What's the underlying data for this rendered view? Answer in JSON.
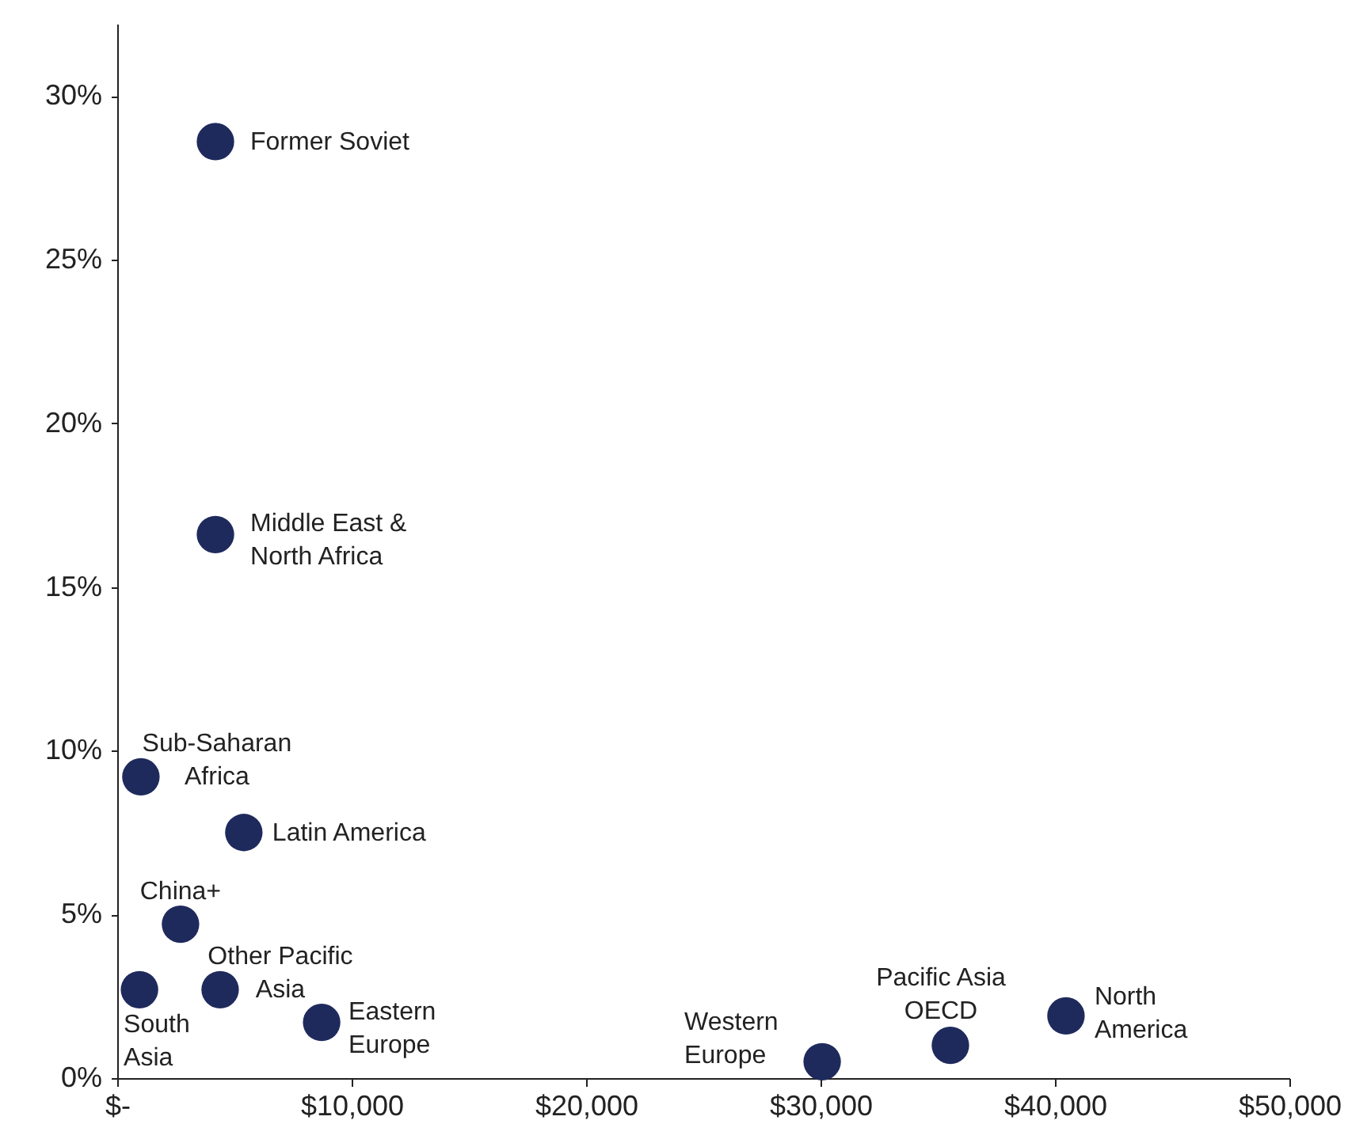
{
  "chart_data": {
    "type": "scatter",
    "x": [
      4190,
      4190,
      1010,
      5400,
      2700,
      950,
      4390,
      8720,
      30070,
      35540,
      40470
    ],
    "series": [
      {
        "color": "#1f2a5c",
        "values": [
          28.6,
          16.6,
          9.2,
          7.5,
          4.7,
          2.7,
          2.7,
          1.7,
          0.5,
          1.0,
          1.9
        ]
      }
    ],
    "annotations": [
      {
        "text": "Former Soviet",
        "x": 4190,
        "y": 28.6
      },
      {
        "text": "Middle East &\nNorth Africa",
        "x": 4190,
        "y": 16.6
      },
      {
        "text": "Sub-Saharan\nAfrica",
        "x": 1010,
        "y": 9.2
      },
      {
        "text": "Latin America",
        "x": 5400,
        "y": 7.5
      },
      {
        "text": "China+",
        "x": 2700,
        "y": 4.7
      },
      {
        "text": "South\nAsia",
        "x": 950,
        "y": 2.7
      },
      {
        "text": "Other Pacific\nAsia",
        "x": 4390,
        "y": 2.7
      },
      {
        "text": "Eastern\nEurope",
        "x": 8720,
        "y": 1.7
      },
      {
        "text": "Western\nEurope",
        "x": 30070,
        "y": 0.5
      },
      {
        "text": "Pacific Asia\nOECD",
        "x": 35540,
        "y": 1.0
      },
      {
        "text": "North\nAmerica",
        "x": 40470,
        "y": 1.9
      }
    ],
    "marker": "circle",
    "grid": false,
    "xlim": [
      0,
      50000
    ],
    "ylim": [
      0,
      32.2
    ],
    "xticks": [
      {
        "value": 0,
        "label": "$-"
      },
      {
        "value": 10000,
        "label": "$10,000"
      },
      {
        "value": 20000,
        "label": "$20,000"
      },
      {
        "value": 30000,
        "label": "$30,000"
      },
      {
        "value": 40000,
        "label": "$40,000"
      },
      {
        "value": 50000,
        "label": "$50,000"
      }
    ],
    "yticks": [
      {
        "value": 0,
        "label": "0%"
      },
      {
        "value": 5,
        "label": "5%"
      },
      {
        "value": 10,
        "label": "10%"
      },
      {
        "value": 15,
        "label": "15%"
      },
      {
        "value": 20,
        "label": "20%"
      },
      {
        "value": 25,
        "label": "25%"
      },
      {
        "value": 30,
        "label": "30%"
      }
    ]
  }
}
